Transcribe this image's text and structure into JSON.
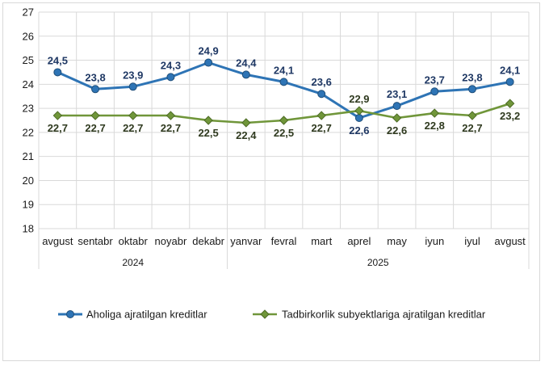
{
  "chart_data": {
    "type": "line",
    "title": "",
    "xlabel": "",
    "ylabel": "",
    "ylim": [
      18,
      27
    ],
    "yticks": [
      18,
      19,
      20,
      21,
      22,
      23,
      24,
      25,
      26,
      27
    ],
    "grid": true,
    "categories": [
      "avgust",
      "sentabr",
      "oktabr",
      "noyabr",
      "dekabr",
      "yanvar",
      "fevral",
      "mart",
      "aprel",
      "may",
      "iyun",
      "iyul",
      "avgust"
    ],
    "year_groups": [
      {
        "label": "2024",
        "start": 0,
        "end": 4
      },
      {
        "label": "2025",
        "start": 5,
        "end": 12
      }
    ],
    "series": [
      {
        "name": "Aholiga ajratilgan kreditlar",
        "color": "#2e74b5",
        "values": [
          24.5,
          23.8,
          23.9,
          24.3,
          24.9,
          24.4,
          24.1,
          23.6,
          22.6,
          23.1,
          23.7,
          23.8,
          24.1
        ],
        "labels": [
          "24,5",
          "23,8",
          "23,9",
          "24,3",
          "24,9",
          "24,4",
          "24,1",
          "23,6",
          "22,6",
          "23,1",
          "23,7",
          "23,8",
          "24,1"
        ]
      },
      {
        "name": "Tadbirkorlik subyektlariga ajratilgan kreditlar",
        "color": "#70963a",
        "values": [
          22.7,
          22.7,
          22.7,
          22.7,
          22.5,
          22.4,
          22.5,
          22.7,
          22.9,
          22.6,
          22.8,
          22.7,
          23.2
        ],
        "labels": [
          "22,7",
          "22,7",
          "22,7",
          "22,7",
          "22,5",
          "22,4",
          "22,5",
          "22,7",
          "22,9",
          "22,6",
          "22,8",
          "22,7",
          "23,2"
        ]
      }
    ],
    "legend_position": "bottom"
  }
}
